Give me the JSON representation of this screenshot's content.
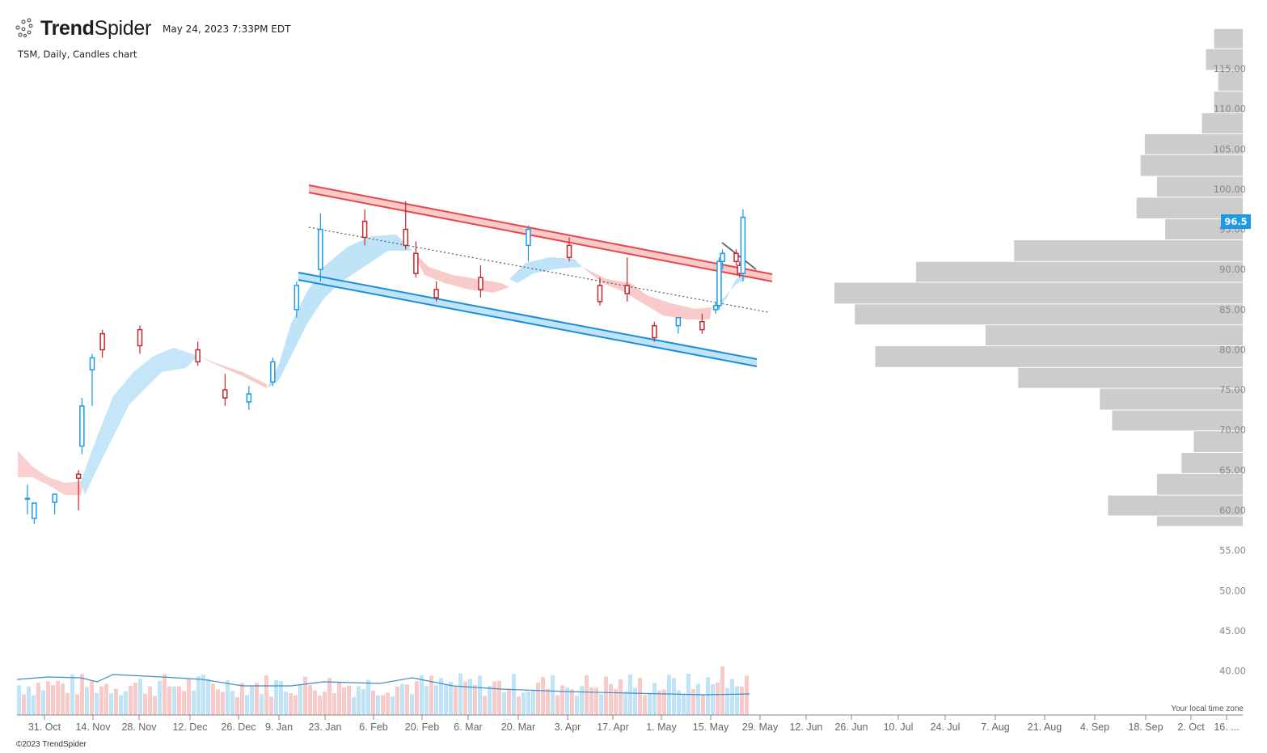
{
  "header": {
    "brand_bold": "Trend",
    "brand_light": "Spider",
    "timestamp": "May 24, 2023 7:33PM EDT",
    "subtitle": "TSM, Daily, Candles chart"
  },
  "footer": {
    "copyright": "©2023 TrendSpider",
    "timezone_label": "Your local time zone"
  },
  "colors": {
    "bull": "#1a9be6",
    "bear": "#c8262c",
    "bull_fill_light": "#bfe3f7",
    "bear_fill_light": "#f9caca",
    "channel_upper": "#e8474c",
    "channel_lower": "#1a8fd8",
    "profile_bar": "#cccccc",
    "price_tag": "#1a9be6"
  },
  "price_tag": {
    "value": "96.5"
  },
  "chart_data": {
    "type": "candlestick",
    "title": "TSM, Daily, Candles chart",
    "symbol": "TSM",
    "interval": "Daily",
    "last_price": 96.5,
    "y_axis": {
      "ticks": [
        "115.00",
        "110.00",
        "105.00",
        "100.00",
        "95.00",
        "90.00",
        "85.00",
        "80.00",
        "75.00",
        "70.00",
        "65.00",
        "60.00",
        "55.00",
        "50.00",
        "45.00",
        "40.00"
      ],
      "ylim": [
        37,
        121
      ],
      "position": "right"
    },
    "x_axis": {
      "ticks": [
        "31. Oct",
        "14. Nov",
        "28. Nov",
        "12. Dec",
        "26. Dec",
        "9. Jan",
        "23. Jan",
        "6. Feb",
        "20. Feb",
        "6. Mar",
        "20. Mar",
        "3. Apr",
        "17. Apr",
        "1. May",
        "15. May",
        "29. May",
        "12. Jun",
        "26. Jun",
        "10. Jul",
        "24. Jul",
        "7. Aug",
        "21. Aug",
        "4. Sep",
        "18. Sep",
        "2. Oct",
        "16. ..."
      ]
    },
    "candles_approx": [
      {
        "date": "2022-10-26",
        "o": 61.5,
        "h": 63.2,
        "l": 59.5,
        "c": 61.5
      },
      {
        "date": "2022-10-28",
        "o": 59.0,
        "h": 60.9,
        "l": 58.3,
        "c": 60.9
      },
      {
        "date": "2022-11-03",
        "o": 61.0,
        "h": 62.0,
        "l": 59.5,
        "c": 62.0
      },
      {
        "date": "2022-11-10",
        "o": 64.5,
        "h": 65.0,
        "l": 60.0,
        "c": 64.0
      },
      {
        "date": "2022-11-11",
        "o": 68.0,
        "h": 74.0,
        "l": 67.0,
        "c": 73.0
      },
      {
        "date": "2022-11-14",
        "o": 77.5,
        "h": 79.5,
        "l": 73.0,
        "c": 79.0
      },
      {
        "date": "2022-11-17",
        "o": 82.0,
        "h": 82.5,
        "l": 79.0,
        "c": 80.0
      },
      {
        "date": "2022-11-28",
        "o": 82.5,
        "h": 83.0,
        "l": 79.5,
        "c": 80.5
      },
      {
        "date": "2022-12-15",
        "o": 80.0,
        "h": 81.0,
        "l": 78.0,
        "c": 78.5
      },
      {
        "date": "2022-12-23",
        "o": 75.0,
        "h": 77.0,
        "l": 73.0,
        "c": 74.0
      },
      {
        "date": "2022-12-30",
        "o": 73.5,
        "h": 75.5,
        "l": 72.5,
        "c": 74.5
      },
      {
        "date": "2023-01-06",
        "o": 76.0,
        "h": 79.0,
        "l": 75.5,
        "c": 78.5
      },
      {
        "date": "2023-01-13",
        "o": 85.0,
        "h": 88.5,
        "l": 84.0,
        "c": 88.0
      },
      {
        "date": "2023-01-20",
        "o": 90.0,
        "h": 97.0,
        "l": 88.5,
        "c": 95.0
      },
      {
        "date": "2023-02-02",
        "o": 96.0,
        "h": 97.5,
        "l": 93.0,
        "c": 94.0
      },
      {
        "date": "2023-02-14",
        "o": 95.0,
        "h": 98.5,
        "l": 92.5,
        "c": 93.0
      },
      {
        "date": "2023-02-17",
        "o": 92.0,
        "h": 93.5,
        "l": 89.0,
        "c": 89.5
      },
      {
        "date": "2023-02-23",
        "o": 87.5,
        "h": 88.5,
        "l": 86.0,
        "c": 86.5
      },
      {
        "date": "2023-03-08",
        "o": 89.0,
        "h": 90.5,
        "l": 86.5,
        "c": 87.5
      },
      {
        "date": "2023-03-22",
        "o": 93.0,
        "h": 95.5,
        "l": 91.0,
        "c": 95.0
      },
      {
        "date": "2023-04-03",
        "o": 93.0,
        "h": 94.0,
        "l": 91.0,
        "c": 91.5
      },
      {
        "date": "2023-04-12",
        "o": 88.0,
        "h": 89.0,
        "l": 85.5,
        "c": 86.0
      },
      {
        "date": "2023-04-20",
        "o": 88.0,
        "h": 91.5,
        "l": 86.0,
        "c": 87.0
      },
      {
        "date": "2023-04-28",
        "o": 83.0,
        "h": 83.5,
        "l": 81.0,
        "c": 81.5
      },
      {
        "date": "2023-05-05",
        "o": 83.0,
        "h": 84.0,
        "l": 82.0,
        "c": 84.0
      },
      {
        "date": "2023-05-12",
        "o": 83.5,
        "h": 84.5,
        "l": 82.0,
        "c": 82.5
      },
      {
        "date": "2023-05-16",
        "o": 85.0,
        "h": 86.0,
        "l": 84.5,
        "c": 85.5
      },
      {
        "date": "2023-05-17",
        "o": 85.5,
        "h": 91.5,
        "l": 85.0,
        "c": 91.0
      },
      {
        "date": "2023-05-18",
        "o": 91.0,
        "h": 92.5,
        "l": 90.0,
        "c": 92.0
      },
      {
        "date": "2023-05-22",
        "o": 92.0,
        "h": 92.5,
        "l": 90.5,
        "c": 91.0
      },
      {
        "date": "2023-05-23",
        "o": 90.5,
        "h": 91.0,
        "l": 89.0,
        "c": 89.5
      },
      {
        "date": "2023-05-24",
        "o": 89.5,
        "h": 97.5,
        "l": 88.5,
        "c": 96.5
      }
    ],
    "overlays": [
      {
        "name": "Upper channel (resistance)",
        "color": "#e8474c",
        "from": {
          "date": "2023-01-17",
          "price": 100.5
        },
        "to": {
          "date": "2023-05-26",
          "price": 89.0
        }
      },
      {
        "name": "Lower channel (support)",
        "color": "#1a8fd8",
        "from": {
          "date": "2023-01-11",
          "price": 89.5
        },
        "to": {
          "date": "2023-05-26",
          "price": 78.6
        }
      },
      {
        "name": "Mid-line (dotted)",
        "color": "#555555",
        "from": {
          "date": "2023-01-17",
          "price": 95.5
        },
        "to": {
          "date": "2023-05-26",
          "price": 84.6
        }
      },
      {
        "name": "Short trendline",
        "color": "#666666",
        "from": {
          "date": "2023-05-18",
          "price": 93.5
        },
        "to": {
          "date": "2023-05-25",
          "price": 89.5
        }
      },
      {
        "name": "Moving average ribbon",
        "bull_color": "#bfe3f7",
        "bear_color": "#f9caca"
      }
    ],
    "volume_profile": {
      "bin_size": 2.65,
      "bars": [
        {
          "price_low": 117.5,
          "price_high": 120.0,
          "relative": 0.07
        },
        {
          "price_low": 114.8,
          "price_high": 117.5,
          "relative": 0.09
        },
        {
          "price_low": 112.2,
          "price_high": 114.8,
          "relative": 0.06
        },
        {
          "price_low": 109.5,
          "price_high": 112.2,
          "relative": 0.07
        },
        {
          "price_low": 106.9,
          "price_high": 109.5,
          "relative": 0.1
        },
        {
          "price_low": 104.3,
          "price_high": 106.9,
          "relative": 0.24
        },
        {
          "price_low": 101.6,
          "price_high": 104.3,
          "relative": 0.25
        },
        {
          "price_low": 99.0,
          "price_high": 101.6,
          "relative": 0.21
        },
        {
          "price_low": 96.3,
          "price_high": 99.0,
          "relative": 0.26
        },
        {
          "price_low": 93.7,
          "price_high": 96.3,
          "relative": 0.19
        },
        {
          "price_low": 91.0,
          "price_high": 93.7,
          "relative": 0.56
        },
        {
          "price_low": 88.4,
          "price_high": 91.0,
          "relative": 0.8
        },
        {
          "price_low": 85.7,
          "price_high": 88.4,
          "relative": 1.0
        },
        {
          "price_low": 83.1,
          "price_high": 85.7,
          "relative": 0.95
        },
        {
          "price_low": 80.5,
          "price_high": 83.1,
          "relative": 0.63
        },
        {
          "price_low": 77.8,
          "price_high": 80.5,
          "relative": 0.9
        },
        {
          "price_low": 75.2,
          "price_high": 77.8,
          "relative": 0.55
        },
        {
          "price_low": 72.5,
          "price_high": 75.2,
          "relative": 0.35
        },
        {
          "price_low": 69.9,
          "price_high": 72.5,
          "relative": 0.32
        },
        {
          "price_low": 67.2,
          "price_high": 69.9,
          "relative": 0.12
        },
        {
          "price_low": 64.6,
          "price_high": 67.2,
          "relative": 0.15
        },
        {
          "price_low": 61.9,
          "price_high": 64.6,
          "relative": 0.21
        },
        {
          "price_low": 59.3,
          "price_high": 61.9,
          "relative": 0.33
        },
        {
          "price_low": 58.0,
          "price_high": 59.3,
          "relative": 0.21
        }
      ]
    },
    "volume": {
      "note": "relative volume bars (0-1) at bottom of chart, with moving average line",
      "max_spike_near": "2022-11-14",
      "ma_color": "#3b8fc4"
    }
  }
}
